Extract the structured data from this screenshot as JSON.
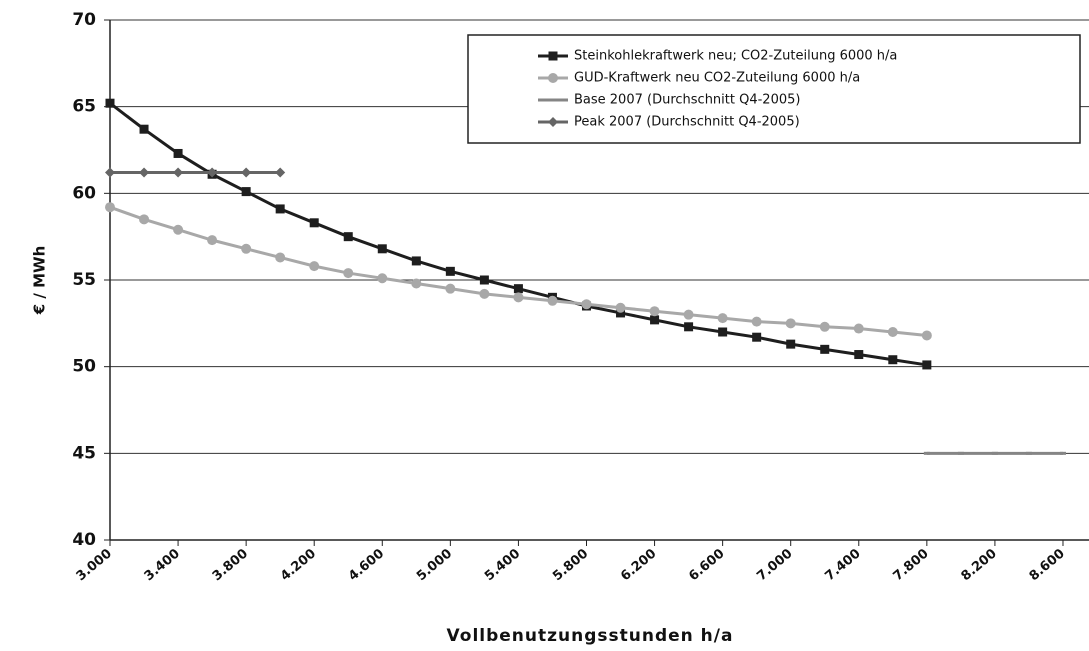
{
  "chart_data": {
    "type": "line",
    "ylabel": "€ / MWh",
    "xlabel": "Vollbenutzungsstunden h/a",
    "xlim": [
      3000,
      8700
    ],
    "ylim": [
      40,
      70
    ],
    "yticks": [
      40,
      45,
      50,
      55,
      60,
      65,
      70
    ],
    "xticks": [
      {
        "value": 3000,
        "label": "3.000"
      },
      {
        "value": 3400,
        "label": "3.400"
      },
      {
        "value": 3800,
        "label": "3.800"
      },
      {
        "value": 4200,
        "label": "4.200"
      },
      {
        "value": 4600,
        "label": "4.600"
      },
      {
        "value": 5000,
        "label": "5.000"
      },
      {
        "value": 5400,
        "label": "5.400"
      },
      {
        "value": 5800,
        "label": "5.800"
      },
      {
        "value": 6200,
        "label": "6.200"
      },
      {
        "value": 6600,
        "label": "6.600"
      },
      {
        "value": 7000,
        "label": "7.000"
      },
      {
        "value": 7400,
        "label": "7.400"
      },
      {
        "value": 7800,
        "label": "7.800"
      },
      {
        "value": 8200,
        "label": "8.200"
      },
      {
        "value": 8600,
        "label": "8.600"
      }
    ],
    "grid": true,
    "legend": "top-right",
    "series": [
      {
        "name": "Steinkohlekraftwerk neu; CO2-Zuteilung 6000 h/a",
        "color": "#1e1e1e",
        "marker": "square",
        "x": [
          3000,
          3200,
          3400,
          3600,
          3800,
          4000,
          4200,
          4400,
          4600,
          4800,
          5000,
          5200,
          5400,
          5600,
          5800,
          6000,
          6200,
          6400,
          6600,
          6800,
          7000,
          7200,
          7400,
          7600,
          7800
        ],
        "values": [
          65.2,
          63.7,
          62.3,
          61.1,
          60.1,
          59.1,
          58.3,
          57.5,
          56.8,
          56.1,
          55.5,
          55.0,
          54.5,
          54.0,
          53.5,
          53.1,
          52.7,
          52.3,
          52.0,
          51.7,
          51.3,
          51.0,
          50.7,
          50.4,
          50.1
        ]
      },
      {
        "name": "GUD-Kraftwerk neu CO2-Zuteilung 6000 h/a",
        "color": "#a8a8a8",
        "marker": "circle",
        "x": [
          3000,
          3200,
          3400,
          3600,
          3800,
          4000,
          4200,
          4400,
          4600,
          4800,
          5000,
          5200,
          5400,
          5600,
          5800,
          6000,
          6200,
          6400,
          6600,
          6800,
          7000,
          7200,
          7400,
          7600,
          7800
        ],
        "values": [
          59.2,
          58.5,
          57.9,
          57.3,
          56.8,
          56.3,
          55.8,
          55.4,
          55.1,
          54.8,
          54.5,
          54.2,
          54.0,
          53.8,
          53.6,
          53.4,
          53.2,
          53.0,
          52.8,
          52.6,
          52.5,
          52.3,
          52.2,
          52.0,
          51.8
        ]
      },
      {
        "name": "Base 2007 (Durchschnitt Q4-2005)",
        "color": "#858585",
        "marker": "dash",
        "x": [
          7800,
          8000,
          8200,
          8400,
          8600
        ],
        "values": [
          45,
          45,
          45,
          45,
          45
        ]
      },
      {
        "name": "Peak 2007 (Durchschnitt Q4-2005)",
        "color": "#656565",
        "marker": "diamond",
        "x": [
          3000,
          3200,
          3400,
          3600,
          3800,
          4000
        ],
        "values": [
          61.2,
          61.2,
          61.2,
          61.2,
          61.2,
          61.2
        ]
      }
    ]
  }
}
